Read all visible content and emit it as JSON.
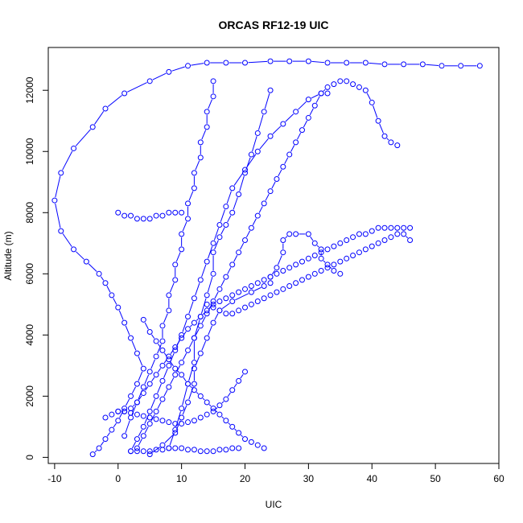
{
  "chart_data": {
    "type": "line",
    "title": "ORCAS RF12-19 UIC",
    "xlabel": "UIC",
    "ylabel": "Altitude (m)",
    "xlim": [
      -11,
      60
    ],
    "ylim": [
      -200,
      13400
    ],
    "xticks": [
      -10,
      0,
      10,
      20,
      30,
      40,
      50,
      60
    ],
    "yticks": [
      0,
      2000,
      4000,
      6000,
      8000,
      10000,
      12000
    ],
    "grid": false,
    "markers": "open-circle",
    "series_color": "#0000ff",
    "series": [
      {
        "x": [
          5,
          7,
          9,
          10,
          11,
          12,
          12,
          13,
          14,
          15,
          16,
          18,
          21,
          23,
          24,
          24,
          25,
          26,
          26,
          27,
          28,
          30,
          31,
          32,
          32,
          33,
          34,
          35
        ],
        "y": [
          100,
          400,
          800,
          1300,
          1800,
          2400,
          2900,
          3400,
          3900,
          4400,
          4800,
          5100,
          5400,
          5600,
          5700,
          5900,
          6200,
          6700,
          7100,
          7300,
          7300,
          7300,
          7000,
          6800,
          6500,
          6300,
          6100,
          6000
        ]
      },
      {
        "x": [
          -4,
          -3,
          -2,
          -1,
          0,
          1,
          2,
          3,
          4,
          3,
          2,
          1,
          0,
          -1,
          -2,
          -3,
          -5,
          -7,
          -9,
          -10,
          -9,
          -7,
          -4,
          -2,
          1,
          5,
          8,
          11,
          14,
          17,
          20,
          24,
          27,
          30,
          33,
          36,
          39,
          42,
          45,
          48,
          51,
          54,
          57
        ],
        "y": [
          100,
          300,
          600,
          900,
          1200,
          1600,
          2000,
          2400,
          2900,
          3400,
          3900,
          4400,
          4900,
          5300,
          5700,
          6000,
          6400,
          6800,
          7400,
          8400,
          9300,
          10100,
          10800,
          11400,
          11900,
          12300,
          12600,
          12800,
          12900,
          12900,
          12900,
          12950,
          12950,
          12950,
          12900,
          12900,
          12900,
          12850,
          12850,
          12850,
          12800,
          12800,
          12800
        ]
      },
      {
        "x": [
          2,
          3,
          4,
          5,
          6,
          7,
          8,
          9,
          10,
          11,
          12,
          13,
          14,
          15,
          16,
          17,
          18,
          20,
          22,
          24,
          26,
          28,
          30,
          32,
          33
        ],
        "y": [
          200,
          600,
          1000,
          1500,
          2000,
          2500,
          3000,
          3500,
          4000,
          4600,
          5200,
          5800,
          6400,
          7000,
          7600,
          8200,
          8800,
          9400,
          10000,
          10500,
          10900,
          11300,
          11700,
          11900,
          11900
        ]
      },
      {
        "x": [
          0,
          1,
          2,
          3,
          4,
          5,
          6,
          7,
          8,
          9,
          10,
          11,
          12,
          13,
          14,
          15,
          16,
          17,
          18,
          19,
          20,
          21,
          22,
          23,
          24,
          25,
          26,
          27,
          28,
          29,
          30,
          31,
          32,
          33,
          34,
          35,
          36,
          37,
          38,
          39,
          40,
          41,
          42,
          43,
          44,
          45,
          46
        ],
        "y": [
          1500,
          1500,
          1600,
          1800,
          2100,
          2400,
          2700,
          3000,
          3300,
          3600,
          3900,
          4200,
          4400,
          4600,
          4800,
          5000,
          5100,
          5200,
          5300,
          5400,
          5500,
          5600,
          5700,
          5800,
          5900,
          6000,
          6100,
          6200,
          6300,
          6400,
          6500,
          6600,
          6700,
          6800,
          6900,
          7000,
          7100,
          7200,
          7300,
          7300,
          7400,
          7500,
          7500,
          7500,
          7500,
          7500,
          7500
        ]
      },
      {
        "x": [
          3,
          4,
          5,
          6,
          7,
          8,
          9,
          10,
          11,
          12,
          13,
          14,
          15,
          16,
          17,
          18,
          19,
          20,
          21,
          22,
          23,
          24,
          25,
          26,
          27,
          28,
          29,
          30,
          31,
          32,
          33,
          34,
          35,
          36,
          37,
          38,
          39,
          40,
          41,
          42,
          43,
          44
        ],
        "y": [
          300,
          700,
          1100,
          1500,
          1900,
          2300,
          2700,
          3100,
          3500,
          3900,
          4300,
          4700,
          5100,
          5500,
          5900,
          6300,
          6700,
          7100,
          7500,
          7900,
          8300,
          8700,
          9100,
          9500,
          9900,
          10300,
          10700,
          11100,
          11500,
          11900,
          12100,
          12200,
          12300,
          12300,
          12200,
          12100,
          12000,
          11600,
          11000,
          10500,
          10300,
          10200
        ]
      },
      {
        "x": [
          8,
          9,
          10,
          11,
          12,
          12,
          13,
          14,
          15,
          15,
          16,
          17,
          18,
          19,
          20,
          21,
          22,
          23,
          24
        ],
        "y": [
          300,
          900,
          1600,
          2400,
          3100,
          3900,
          4600,
          5300,
          6000,
          6700,
          7200,
          7600,
          8000,
          8600,
          9300,
          9900,
          10600,
          11300,
          12000
        ]
      },
      {
        "x": [
          1,
          2,
          3,
          4,
          5,
          6,
          7,
          7,
          8,
          8,
          9,
          9,
          10,
          10,
          11,
          11,
          12,
          12,
          13,
          13,
          14,
          14,
          15,
          15
        ],
        "y": [
          700,
          1300,
          1800,
          2300,
          2800,
          3300,
          3800,
          4300,
          4800,
          5300,
          5800,
          6300,
          6800,
          7300,
          7800,
          8300,
          8800,
          9300,
          9800,
          10300,
          10800,
          11300,
          11800,
          12300
        ]
      },
      {
        "x": [
          14,
          15,
          16,
          17,
          18,
          19,
          20,
          21,
          22,
          23,
          24,
          25,
          26,
          27,
          28,
          29,
          30,
          31,
          32,
          33,
          34,
          35,
          36,
          37,
          38,
          39,
          40,
          41,
          42,
          43,
          44,
          45,
          46
        ],
        "y": [
          5000,
          4900,
          4800,
          4700,
          4700,
          4800,
          4900,
          5000,
          5100,
          5200,
          5300,
          5400,
          5500,
          5600,
          5700,
          5800,
          5900,
          6000,
          6100,
          6200,
          6300,
          6400,
          6500,
          6600,
          6700,
          6800,
          6900,
          7000,
          7100,
          7200,
          7300,
          7300,
          7100
        ]
      },
      {
        "x": [
          0,
          1,
          2,
          3,
          4,
          5,
          6,
          7,
          8,
          9,
          10
        ],
        "y": [
          8000,
          7900,
          7900,
          7800,
          7800,
          7800,
          7900,
          7900,
          8000,
          8000,
          8000
        ]
      },
      {
        "x": [
          4,
          5,
          6,
          7,
          8,
          9,
          10,
          11,
          12,
          13,
          14,
          15,
          16,
          17,
          18,
          19,
          20,
          21,
          22,
          23
        ],
        "y": [
          4500,
          4100,
          3800,
          3500,
          3200,
          2900,
          2700,
          2400,
          2200,
          2000,
          1800,
          1600,
          1400,
          1200,
          1000,
          800,
          600,
          500,
          400,
          300
        ]
      },
      {
        "x": [
          2,
          3,
          4,
          5,
          6,
          7,
          8,
          9,
          10,
          11,
          12,
          13,
          14,
          15,
          16,
          17,
          18,
          19
        ],
        "y": [
          200,
          200,
          200,
          200,
          250,
          250,
          300,
          300,
          300,
          250,
          250,
          200,
          200,
          200,
          250,
          250,
          300,
          300
        ]
      },
      {
        "x": [
          -2,
          -1,
          0,
          1,
          2,
          3,
          4,
          5,
          6,
          7,
          8,
          9,
          10,
          11,
          12,
          13,
          14,
          15,
          16,
          17,
          18,
          19,
          20
        ],
        "y": [
          1300,
          1400,
          1500,
          1500,
          1450,
          1400,
          1350,
          1300,
          1250,
          1200,
          1150,
          1100,
          1100,
          1150,
          1200,
          1300,
          1400,
          1500,
          1700,
          1900,
          2200,
          2500,
          2800
        ]
      }
    ]
  }
}
